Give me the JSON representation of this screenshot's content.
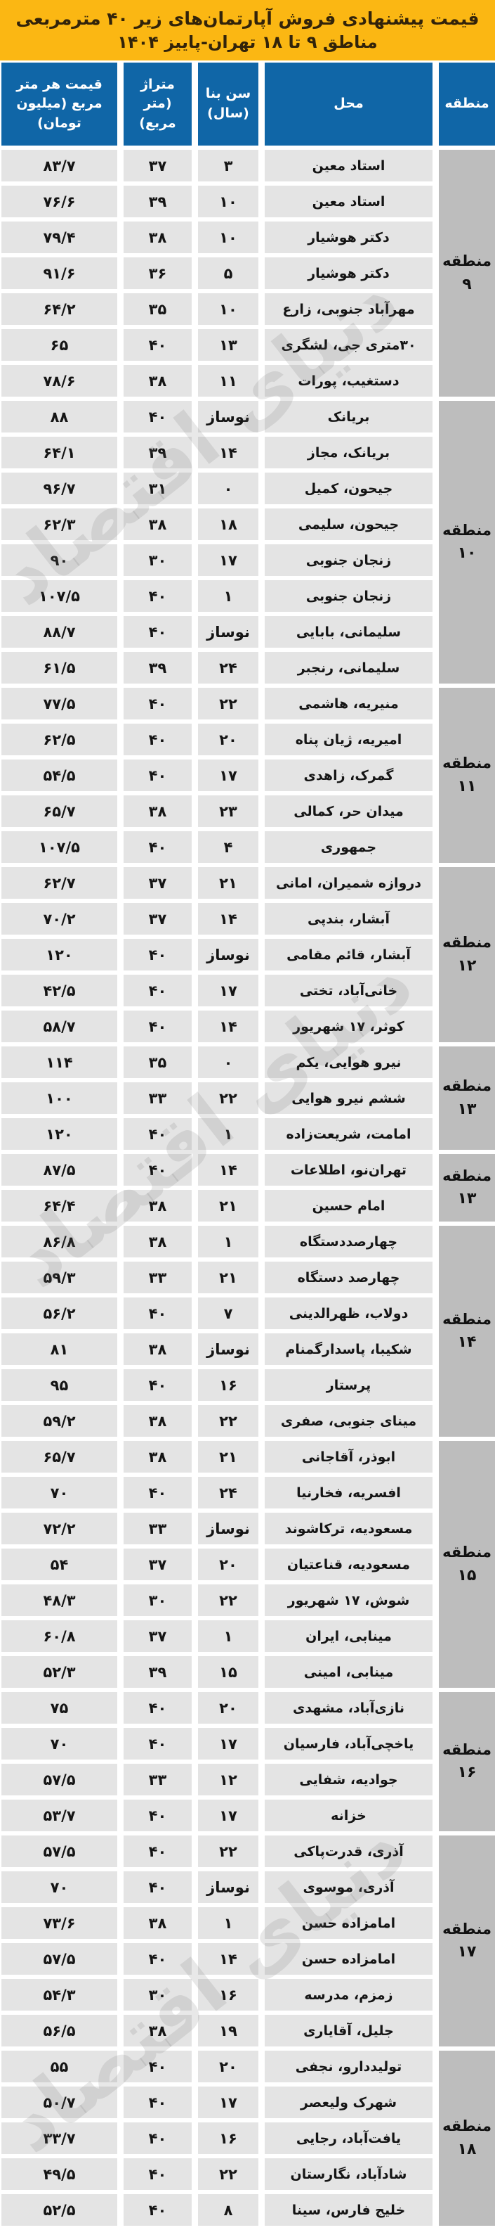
{
  "title": {
    "line1": "قیمت پیشنهادی فروش آپارتمان‌های زیر ۴۰ مترمربعی",
    "line2": "مناطق ۹ تا ۱۸ تهران-پاییز ۱۴۰۴"
  },
  "columns": {
    "region": "منطقه",
    "location": "محل",
    "age": "سن بنا (سال)",
    "area": "متراژ (متر مربع)",
    "price": "قیمت هر متر مربع (میلیون تومان)"
  },
  "watermark": "دنیای اقتصاد",
  "colors": {
    "banner_bg": "#FBB713",
    "banner_text": "#32230a",
    "header_bg": "#1066A7",
    "header_text": "#ffffff",
    "row_bg": "#E4E4E4",
    "region_bg": "#BDBDBD",
    "text": "#151515"
  },
  "regions": [
    {
      "label": "منطقه",
      "number": "۹",
      "rows": [
        {
          "location": "استاد معین",
          "age": "۳",
          "area": "۳۷",
          "price": "۸۳/۷"
        },
        {
          "location": "استاد معین",
          "age": "۱۰",
          "area": "۳۹",
          "price": "۷۶/۶"
        },
        {
          "location": "دکتر هوشیار",
          "age": "۱۰",
          "area": "۳۸",
          "price": "۷۹/۴"
        },
        {
          "location": "دکتر هوشیار",
          "age": "۵",
          "area": "۳۶",
          "price": "۹۱/۶"
        },
        {
          "location": "مهرآباد جنوبی، زارع",
          "age": "۱۰",
          "area": "۳۵",
          "price": "۶۴/۲"
        },
        {
          "location": "۳۰متری جی، لشگری",
          "age": "۱۳",
          "area": "۴۰",
          "price": "۶۵"
        },
        {
          "location": "دستغیب، پورات",
          "age": "۱۱",
          "area": "۳۸",
          "price": "۷۸/۶"
        }
      ]
    },
    {
      "label": "منطقه",
      "number": "۱۰",
      "rows": [
        {
          "location": "بریانک",
          "age": "نوساز",
          "area": "۴۰",
          "price": "۸۸"
        },
        {
          "location": "بریانک، مجاز",
          "age": "۱۴",
          "area": "۳۹",
          "price": "۶۴/۱"
        },
        {
          "location": "جیحون، کمیل",
          "age": "۰",
          "area": "۳۱",
          "price": "۹۶/۷"
        },
        {
          "location": "جیحون، سلیمی",
          "age": "۱۸",
          "area": "۳۸",
          "price": "۶۲/۳"
        },
        {
          "location": "زنجان جنوبی",
          "age": "۱۷",
          "area": "۳۰",
          "price": "۹۰"
        },
        {
          "location": "زنجان جنوبی",
          "age": "۱",
          "area": "۴۰",
          "price": "۱۰۷/۵"
        },
        {
          "location": "سلیمانی، بابایی",
          "age": "نوساز",
          "area": "۴۰",
          "price": "۸۸/۷"
        },
        {
          "location": "سلیمانی، رنجبر",
          "age": "۲۴",
          "area": "۳۹",
          "price": "۶۱/۵"
        }
      ]
    },
    {
      "label": "منطقه",
      "number": "۱۱",
      "rows": [
        {
          "location": "منیریه، هاشمی",
          "age": "۲۲",
          "area": "۴۰",
          "price": "۷۷/۵"
        },
        {
          "location": "امیریه، ژیان پناه",
          "age": "۲۰",
          "area": "۴۰",
          "price": "۶۲/۵"
        },
        {
          "location": "گمرک، زاهدی",
          "age": "۱۷",
          "area": "۴۰",
          "price": "۵۴/۵"
        },
        {
          "location": "میدان حر، کمالی",
          "age": "۲۳",
          "area": "۳۸",
          "price": "۶۵/۷"
        },
        {
          "location": "جمهوری",
          "age": "۴",
          "area": "۴۰",
          "price": "۱۰۷/۵"
        }
      ]
    },
    {
      "label": "منطقه",
      "number": "۱۲",
      "rows": [
        {
          "location": "دروازه شمیران، امانی",
          "age": "۲۱",
          "area": "۳۷",
          "price": "۶۲/۷"
        },
        {
          "location": "آبشار، بندپی",
          "age": "۱۴",
          "area": "۳۷",
          "price": "۷۰/۲"
        },
        {
          "location": "آبشار، قائم مقامی",
          "age": "نوساز",
          "area": "۴۰",
          "price": "۱۲۰"
        },
        {
          "location": "خانی‌آباد، تختی",
          "age": "۱۷",
          "area": "۴۰",
          "price": "۴۲/۵"
        },
        {
          "location": "کوثر، ۱۷ شهریور",
          "age": "۱۴",
          "area": "۴۰",
          "price": "۵۸/۷"
        }
      ]
    },
    {
      "label": "منطقه",
      "number": "۱۳",
      "rows": [
        {
          "location": "نیرو هوایی، یکم",
          "age": "۰",
          "area": "۳۵",
          "price": "۱۱۴"
        },
        {
          "location": "ششم نیرو هوایی",
          "age": "۲۲",
          "area": "۳۳",
          "price": "۱۰۰"
        },
        {
          "location": "امامت، شریعت‌زاده",
          "age": "۱",
          "area": "۴۰",
          "price": "۱۲۰"
        }
      ]
    },
    {
      "label": "منطقه",
      "number": "۱۳",
      "rows": [
        {
          "location": "تهران‌نو، اطلاعات",
          "age": "۱۴",
          "area": "۴۰",
          "price": "۸۷/۵"
        },
        {
          "location": "امام حسین",
          "age": "۲۱",
          "area": "۳۸",
          "price": "۶۴/۴"
        }
      ]
    },
    {
      "label": "منطقه",
      "number": "۱۴",
      "rows": [
        {
          "location": "چهارصددستگاه",
          "age": "۱",
          "area": "۳۸",
          "price": "۸۶/۸"
        },
        {
          "location": "چهارصد دستگاه",
          "age": "۲۱",
          "area": "۳۳",
          "price": "۵۹/۳"
        },
        {
          "location": "دولاب، ظهرالدینی",
          "age": "۷",
          "area": "۴۰",
          "price": "۵۶/۲"
        },
        {
          "location": "شکیبا، پاسدارگمنام",
          "age": "نوساز",
          "area": "۳۸",
          "price": "۸۱"
        },
        {
          "location": "پرستار",
          "age": "۱۶",
          "area": "۴۰",
          "price": "۹۵"
        },
        {
          "location": "مینای جنوبی، صفری",
          "age": "۲۲",
          "area": "۳۸",
          "price": "۵۹/۲"
        }
      ]
    },
    {
      "label": "منطقه",
      "number": "۱۵",
      "rows": [
        {
          "location": "ابوذر، آقاجانی",
          "age": "۲۱",
          "area": "۳۸",
          "price": "۶۵/۷"
        },
        {
          "location": "افسریه، فخارنیا",
          "age": "۲۴",
          "area": "۴۰",
          "price": "۷۰"
        },
        {
          "location": "مسعودیه، ترکاشوند",
          "age": "نوساز",
          "area": "۳۳",
          "price": "۷۲/۲"
        },
        {
          "location": "مسعودیه، قناعتیان",
          "age": "۲۰",
          "area": "۳۷",
          "price": "۵۴"
        },
        {
          "location": "شوش، ۱۷ شهریور",
          "age": "۲۲",
          "area": "۳۰",
          "price": "۴۸/۳"
        },
        {
          "location": "مینابی، ایران",
          "age": "۱",
          "area": "۳۷",
          "price": "۶۰/۸"
        },
        {
          "location": "مینابی، امینی",
          "age": "۱۵",
          "area": "۳۹",
          "price": "۵۲/۳"
        }
      ]
    },
    {
      "label": "منطقه",
      "number": "۱۶",
      "rows": [
        {
          "location": "نازی‌آباد، مشهدی",
          "age": "۲۰",
          "area": "۴۰",
          "price": "۷۵"
        },
        {
          "location": "یاخچی‌آباد، فارسیان",
          "age": "۱۷",
          "area": "۴۰",
          "price": "۷۰"
        },
        {
          "location": "جوادیه، شفایی",
          "age": "۱۲",
          "area": "۳۳",
          "price": "۵۷/۵"
        },
        {
          "location": "خزانه",
          "age": "۱۷",
          "area": "۴۰",
          "price": "۵۳/۷"
        }
      ]
    },
    {
      "label": "منطقه",
      "number": "۱۷",
      "rows": [
        {
          "location": "آذری، قدرت‌پاکی",
          "age": "۲۲",
          "area": "۴۰",
          "price": "۵۷/۵"
        },
        {
          "location": "آذری، موسوی",
          "age": "نوساز",
          "area": "۴۰",
          "price": "۷۰"
        },
        {
          "location": "امامزاده حسن",
          "age": "۱",
          "area": "۳۸",
          "price": "۷۳/۶"
        },
        {
          "location": "امامزاده حسن",
          "age": "۱۴",
          "area": "۴۰",
          "price": "۵۷/۵"
        },
        {
          "location": "زمزم، مدرسه",
          "age": "۱۶",
          "area": "۳۰",
          "price": "۵۴/۳"
        },
        {
          "location": "جلیل، آقایاری",
          "age": "۱۹",
          "area": "۳۸",
          "price": "۵۶/۵"
        }
      ]
    },
    {
      "label": "منطقه",
      "number": "۱۸",
      "rows": [
        {
          "location": "تولیددارو، نجفی",
          "age": "۲۰",
          "area": "۴۰",
          "price": "۵۵"
        },
        {
          "location": "شهرک ولیعصر",
          "age": "۱۷",
          "area": "۴۰",
          "price": "۵۰/۷"
        },
        {
          "location": "یافت‌آباد، رجایی",
          "age": "۱۶",
          "area": "۴۰",
          "price": "۳۳/۷"
        },
        {
          "location": "شادآباد، نگارستان",
          "age": "۲۲",
          "area": "۴۰",
          "price": "۴۹/۵"
        },
        {
          "location": "خلیج فارس، سینا",
          "age": "۸",
          "area": "۴۰",
          "price": "۵۲/۵"
        }
      ]
    }
  ]
}
